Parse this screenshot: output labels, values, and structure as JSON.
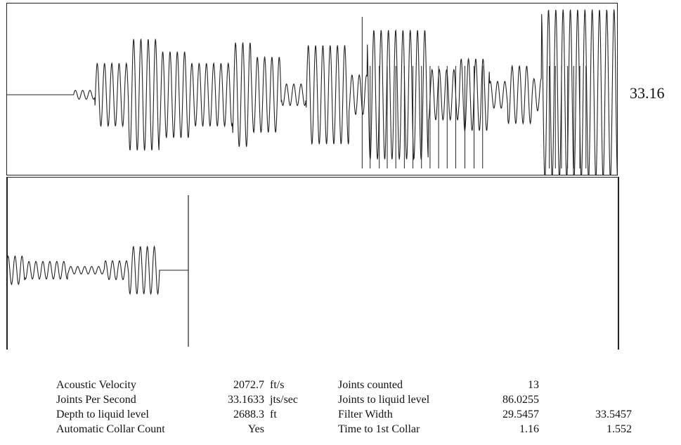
{
  "chart_data": [
    {
      "type": "line",
      "panel": "acoustic-record",
      "description_of_marks": "filtered acoustic signal with collar marker ticks",
      "joints_per_second_label": "33.16",
      "series": [
        {
          "baseline_end": 0.11,
          "segments": [
            {
              "from": 0.11,
              "to": 0.145,
              "amp": 0.05
            },
            {
              "from": 0.145,
              "to": 0.2,
              "amp": 0.35
            },
            {
              "from": 0.2,
              "to": 0.25,
              "amp": 0.62
            },
            {
              "from": 0.25,
              "to": 0.3,
              "amp": 0.48
            },
            {
              "from": 0.3,
              "to": 0.37,
              "amp": 0.35
            },
            {
              "from": 0.37,
              "to": 0.4,
              "amp": 0.58
            },
            {
              "from": 0.4,
              "to": 0.45,
              "amp": 0.42
            },
            {
              "from": 0.45,
              "to": 0.49,
              "amp": 0.12
            },
            {
              "from": 0.49,
              "to": 0.56,
              "amp": 0.55
            },
            {
              "from": 0.56,
              "to": 0.59,
              "amp": 0.22
            },
            {
              "from": 0.59,
              "to": 0.69,
              "amp": 0.72
            },
            {
              "from": 0.69,
              "to": 0.74,
              "amp": 0.28
            },
            {
              "from": 0.74,
              "to": 0.79,
              "amp": 0.4
            },
            {
              "from": 0.79,
              "to": 0.82,
              "amp": 0.15
            },
            {
              "from": 0.82,
              "to": 0.86,
              "amp": 0.32
            },
            {
              "from": 0.86,
              "to": 0.875,
              "amp": 0.18
            },
            {
              "from": 0.875,
              "to": 1.0,
              "amp": 0.95
            }
          ],
          "cycles_per_unit": 84
        }
      ],
      "collar_ticks_x": [
        0.582,
        0.595,
        0.61,
        0.623,
        0.637,
        0.651,
        0.665,
        0.679,
        0.693,
        0.707,
        0.721,
        0.735,
        0.75,
        0.765,
        0.779,
        0.888,
        0.898,
        0.908,
        0.918,
        0.928,
        0.938,
        0.948
      ],
      "tall_ticks_x": [
        0.582,
        0.73
      ]
    },
    {
      "type": "line",
      "panel": "liquid-level-detail",
      "series": [
        {
          "segments": [
            {
              "from": 0.0,
              "to": 0.03,
              "amp": 0.45
            },
            {
              "from": 0.03,
              "to": 0.1,
              "amp": 0.28
            },
            {
              "from": 0.1,
              "to": 0.16,
              "amp": 0.12
            },
            {
              "from": 0.16,
              "to": 0.2,
              "amp": 0.3
            },
            {
              "from": 0.2,
              "to": 0.25,
              "amp": 0.75
            }
          ],
          "signal_end": 0.255,
          "cycles_per_unit": 88
        }
      ],
      "marker_x": 0.297
    }
  ],
  "report": {
    "rows": [
      {
        "label": "Acoustic Velocity",
        "value": "2072.7",
        "unit": "ft/s",
        "label2": "Joints counted",
        "value2": "13",
        "value3": ""
      },
      {
        "label": "Joints Per Second",
        "value": "33.1633",
        "unit": "jts/sec",
        "label2": "Joints to liquid level",
        "value2": "86.0255",
        "value3": ""
      },
      {
        "label": "Depth to liquid level",
        "value": "2688.3",
        "unit": "ft",
        "label2": "Filter Width",
        "value2": "29.5457",
        "value3": "33.5457"
      },
      {
        "label": "Automatic Collar Count",
        "value": "Yes",
        "unit": "",
        "label2": "Time to 1st Collar",
        "value2": "1.16",
        "value3": "1.552"
      }
    ]
  }
}
